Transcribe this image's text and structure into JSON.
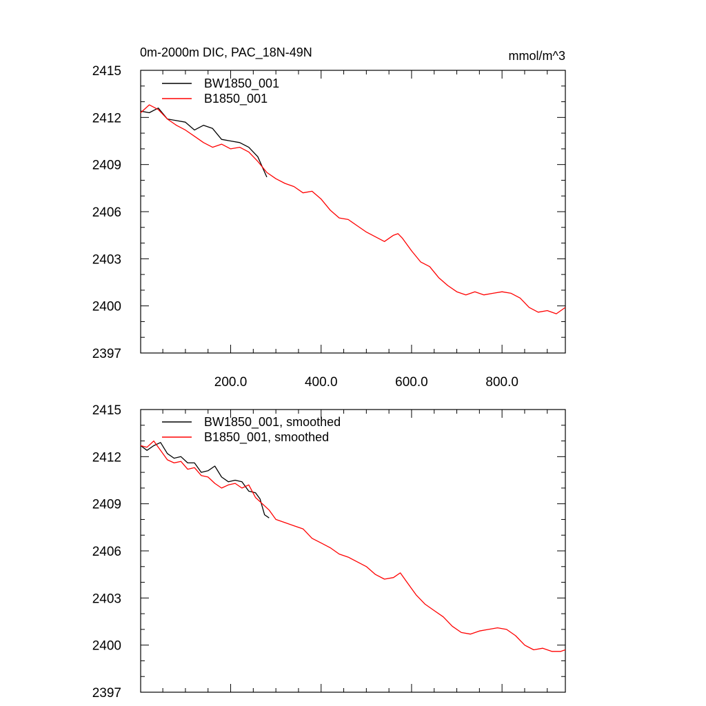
{
  "chart_data": [
    {
      "type": "line",
      "title_left": "0m-2000m DIC, PAC_18N-49N",
      "title_right": "mmol/m^3",
      "xlabel": "",
      "ylabel": "",
      "xlim": [
        1,
        940
      ],
      "ylim": [
        2397,
        2415
      ],
      "x_ticks": [
        200,
        400,
        600,
        800
      ],
      "x_tick_labels": [
        "200.0",
        "400.0",
        "600.0",
        "800.0"
      ],
      "y_ticks": [
        2397,
        2400,
        2403,
        2406,
        2409,
        2412,
        2415
      ],
      "y_tick_labels": [
        "2397",
        "2400",
        "2403",
        "2406",
        "2409",
        "2412",
        "2415"
      ],
      "legend_position": "top-left",
      "series": [
        {
          "name": "BW1850_001",
          "color": "#000000",
          "x": [
            1,
            20,
            40,
            60,
            80,
            100,
            120,
            140,
            160,
            180,
            200,
            220,
            240,
            260,
            280
          ],
          "y": [
            2412.4,
            2412.3,
            2412.6,
            2411.9,
            2411.8,
            2411.7,
            2411.2,
            2411.5,
            2411.3,
            2410.6,
            2410.5,
            2410.4,
            2410.1,
            2409.5,
            2408.2
          ]
        },
        {
          "name": "B1850_001",
          "color": "#ff0000",
          "x": [
            1,
            20,
            40,
            60,
            80,
            100,
            120,
            140,
            160,
            180,
            200,
            220,
            240,
            260,
            280,
            300,
            320,
            340,
            360,
            380,
            400,
            420,
            440,
            460,
            480,
            500,
            520,
            540,
            560,
            570,
            580,
            600,
            620,
            640,
            660,
            680,
            700,
            720,
            740,
            760,
            780,
            800,
            820,
            840,
            860,
            880,
            900,
            920,
            940
          ],
          "y": [
            2412.3,
            2412.8,
            2412.5,
            2411.9,
            2411.5,
            2411.2,
            2410.8,
            2410.4,
            2410.1,
            2410.3,
            2410.0,
            2410.1,
            2409.8,
            2409.2,
            2408.5,
            2408.1,
            2407.8,
            2407.6,
            2407.2,
            2407.3,
            2406.8,
            2406.1,
            2405.6,
            2405.5,
            2405.1,
            2404.7,
            2404.4,
            2404.1,
            2404.5,
            2404.6,
            2404.3,
            2403.5,
            2402.8,
            2402.5,
            2401.8,
            2401.3,
            2400.9,
            2400.7,
            2400.9,
            2400.7,
            2400.8,
            2400.9,
            2400.8,
            2400.5,
            2399.9,
            2399.6,
            2399.7,
            2399.5,
            2399.9
          ]
        }
      ]
    },
    {
      "type": "line",
      "xlabel": "",
      "ylabel": "",
      "xlim": [
        1,
        940
      ],
      "ylim": [
        2397,
        2415
      ],
      "x_ticks": [
        200,
        400,
        600,
        800
      ],
      "y_ticks": [
        2397,
        2400,
        2403,
        2406,
        2409,
        2412,
        2415
      ],
      "y_tick_labels": [
        "2397",
        "2400",
        "2403",
        "2406",
        "2409",
        "2412",
        "2415"
      ],
      "legend_position": "top-left",
      "series": [
        {
          "name": "BW1850_001, smoothed",
          "color": "#000000",
          "x": [
            1,
            15,
            30,
            45,
            60,
            75,
            90,
            105,
            120,
            135,
            150,
            165,
            180,
            195,
            210,
            225,
            240,
            255,
            265,
            275,
            285
          ],
          "y": [
            2412.7,
            2412.4,
            2412.7,
            2412.9,
            2412.2,
            2411.9,
            2412.0,
            2411.6,
            2411.6,
            2411.0,
            2411.1,
            2411.4,
            2410.7,
            2410.4,
            2410.5,
            2410.4,
            2409.8,
            2409.7,
            2409.3,
            2408.3,
            2408.1
          ]
        },
        {
          "name": "B1850_001, smoothed",
          "color": "#ff0000",
          "x": [
            1,
            15,
            30,
            45,
            60,
            75,
            90,
            105,
            120,
            135,
            150,
            165,
            180,
            195,
            210,
            225,
            240,
            255,
            270,
            285,
            300,
            320,
            340,
            360,
            380,
            400,
            420,
            440,
            460,
            480,
            500,
            520,
            540,
            560,
            575,
            590,
            610,
            630,
            650,
            670,
            690,
            710,
            730,
            750,
            770,
            790,
            810,
            830,
            850,
            870,
            890,
            910,
            930,
            940
          ],
          "y": [
            2412.7,
            2412.6,
            2413.0,
            2412.4,
            2411.8,
            2411.6,
            2411.7,
            2411.2,
            2411.3,
            2410.8,
            2410.7,
            2410.3,
            2410.0,
            2410.2,
            2410.3,
            2410.0,
            2410.2,
            2409.4,
            2409.0,
            2408.6,
            2408.0,
            2407.8,
            2407.6,
            2407.4,
            2406.8,
            2406.5,
            2406.2,
            2405.8,
            2405.6,
            2405.3,
            2405.0,
            2404.5,
            2404.2,
            2404.3,
            2404.6,
            2404.0,
            2403.2,
            2402.6,
            2402.2,
            2401.8,
            2401.2,
            2400.8,
            2400.7,
            2400.9,
            2401.0,
            2401.1,
            2401.0,
            2400.6,
            2400.0,
            2399.7,
            2399.8,
            2399.6,
            2399.6,
            2399.7
          ]
        }
      ]
    }
  ]
}
